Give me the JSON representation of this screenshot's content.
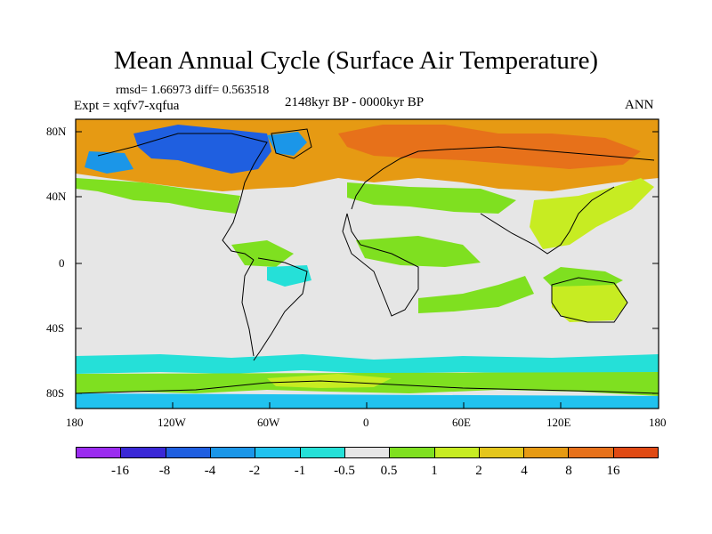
{
  "title": "Mean Annual Cycle (Surface Air Temperature)",
  "stats": "rmsd= 1.66973 diff= 0.563518",
  "experiment": "Expt = xqfv7-xqfua",
  "period": "2148kyr BP - 0000kyr BP",
  "season": "ANN",
  "map": {
    "lat_labels": [
      "80N",
      "40N",
      "0",
      "40S",
      "80S"
    ],
    "lon_labels": [
      "180",
      "120W",
      "60W",
      "0",
      "60E",
      "120E",
      "180"
    ],
    "colors": {
      "neutral": "#e6e6e6",
      "coastline": "#000000"
    }
  },
  "colorbar": {
    "colors": [
      "#9b2cf0",
      "#3a28d6",
      "#1f5fe0",
      "#1b96e8",
      "#20c2ef",
      "#25e0d8",
      "#e6e6e6",
      "#7fe020",
      "#c7ec22",
      "#e4c61c",
      "#e69a13",
      "#e7711a",
      "#e04a14"
    ],
    "labels": [
      "-16",
      "-8",
      "-4",
      "-2",
      "-1",
      "-0.5",
      "0.5",
      "1",
      "2",
      "4",
      "8",
      "16"
    ]
  }
}
